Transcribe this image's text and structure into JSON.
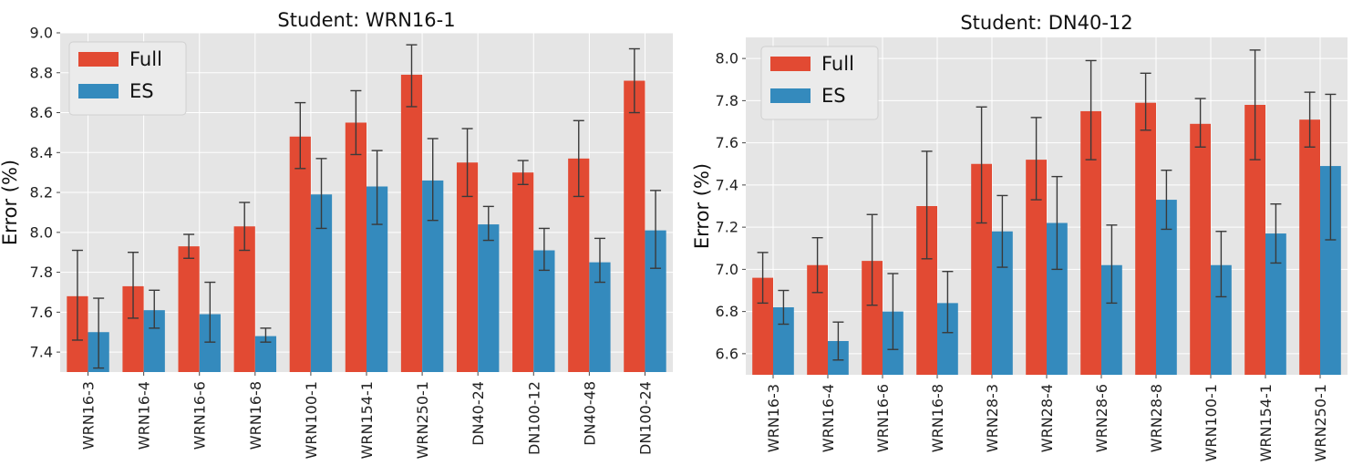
{
  "colors": {
    "full": "#E24A33",
    "es": "#348ABD",
    "bg": "#E5E5E5",
    "grid": "#FFFFFF",
    "err": "#3a3a3a"
  },
  "chart_data": [
    {
      "type": "bar",
      "title": "Student: WRN16-1",
      "ylabel": "Error (%)",
      "xlabel": "",
      "ylim": [
        7.3,
        9.0
      ],
      "yticks": [
        7.4,
        7.6,
        7.8,
        8.0,
        8.2,
        8.4,
        8.6,
        8.8,
        9.0
      ],
      "ytick_labels": [
        "7.4",
        "7.6",
        "7.8",
        "8.0",
        "8.2",
        "8.4",
        "8.6",
        "8.8",
        "9.0"
      ],
      "legend": [
        "Full",
        "ES"
      ],
      "legend_position": "top-left",
      "grid": true,
      "categories": [
        "WRN16-3",
        "WRN16-4",
        "WRN16-6",
        "WRN16-8",
        "WRN100-1",
        "WRN154-1",
        "WRN250-1",
        "DN40-24",
        "DN100-12",
        "DN40-48",
        "DN100-24"
      ],
      "series": [
        {
          "name": "Full",
          "values": [
            7.68,
            7.73,
            7.93,
            8.03,
            8.48,
            8.55,
            8.79,
            8.35,
            8.3,
            8.37,
            8.76
          ],
          "err_low": [
            7.46,
            7.57,
            7.87,
            7.91,
            8.32,
            8.39,
            8.63,
            8.18,
            8.24,
            8.18,
            8.6
          ],
          "err_high": [
            7.91,
            7.9,
            7.99,
            8.15,
            8.65,
            8.71,
            8.94,
            8.52,
            8.36,
            8.56,
            8.92
          ]
        },
        {
          "name": "ES",
          "values": [
            7.5,
            7.61,
            7.59,
            7.48,
            8.19,
            8.23,
            8.26,
            8.04,
            7.91,
            7.85,
            8.01
          ],
          "err_low": [
            7.32,
            7.52,
            7.45,
            7.45,
            8.02,
            8.04,
            8.06,
            7.96,
            7.81,
            7.75,
            7.82
          ],
          "err_high": [
            7.67,
            7.71,
            7.75,
            7.52,
            8.37,
            8.41,
            8.47,
            8.13,
            8.02,
            7.97,
            8.21
          ]
        }
      ]
    },
    {
      "type": "bar",
      "title": "Student: DN40-12",
      "ylabel": "Error (%)",
      "xlabel": "",
      "ylim": [
        6.5,
        8.1
      ],
      "yticks": [
        6.6,
        6.8,
        7.0,
        7.2,
        7.4,
        7.6,
        7.8,
        8.0
      ],
      "ytick_labels": [
        "6.6",
        "6.8",
        "7.0",
        "7.2",
        "7.4",
        "7.6",
        "7.8",
        "8.0"
      ],
      "legend": [
        "Full",
        "ES"
      ],
      "legend_position": "top-left",
      "grid": true,
      "categories": [
        "WRN16-3",
        "WRN16-4",
        "WRN16-6",
        "WRN16-8",
        "WRN28-3",
        "WRN28-4",
        "WRN28-6",
        "WRN28-8",
        "WRN100-1",
        "WRN154-1",
        "WRN250-1"
      ],
      "series": [
        {
          "name": "Full",
          "values": [
            6.96,
            7.02,
            7.04,
            7.3,
            7.5,
            7.52,
            7.75,
            7.79,
            7.69,
            7.78,
            7.71
          ],
          "err_low": [
            6.84,
            6.89,
            6.83,
            7.05,
            7.22,
            7.33,
            7.52,
            7.66,
            7.58,
            7.52,
            7.58
          ],
          "err_high": [
            7.08,
            7.15,
            7.26,
            7.56,
            7.77,
            7.72,
            7.99,
            7.93,
            7.81,
            8.04,
            7.84
          ]
        },
        {
          "name": "ES",
          "values": [
            6.82,
            6.66,
            6.8,
            6.84,
            7.18,
            7.22,
            7.02,
            7.33,
            7.02,
            7.17,
            7.49
          ],
          "err_low": [
            6.74,
            6.57,
            6.62,
            6.7,
            7.01,
            7.0,
            6.84,
            7.19,
            6.87,
            7.03,
            7.14
          ],
          "err_high": [
            6.9,
            6.75,
            6.98,
            6.99,
            7.35,
            7.44,
            7.21,
            7.47,
            7.18,
            7.31,
            7.83
          ]
        }
      ]
    }
  ]
}
